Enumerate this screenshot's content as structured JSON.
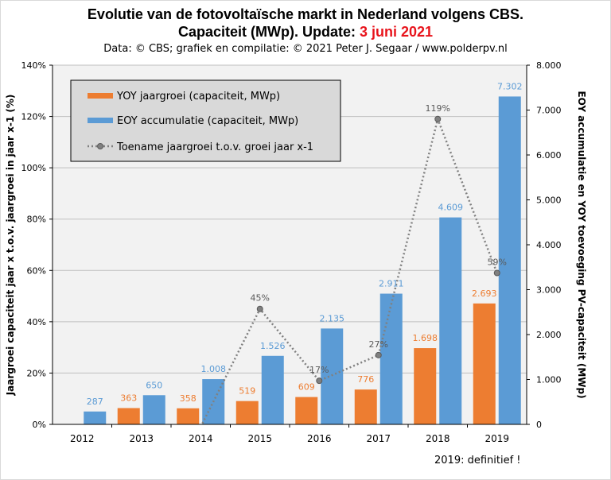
{
  "header": {
    "title_line1": "Evolutie van de fotovoltaïsche markt in Nederland volgens CBS.",
    "title_line2_prefix": "Capaciteit (MWp). Update: ",
    "title_line2_date": "3 juni 2021",
    "subtitle": "Data: © CBS; grafiek en compilatie: © 2021 Peter J. Segaar / www.polderpv.nl"
  },
  "footnote": "2019: definitief !",
  "colors": {
    "yoy": "#ed7d31",
    "eoy": "#5b9bd5",
    "growth": "#808080",
    "plot_bg": "#f2f2f2",
    "grid": "#bfbfbf"
  },
  "chart_data": {
    "type": "bar",
    "categories": [
      "2012",
      "2013",
      "2014",
      "2015",
      "2016",
      "2017",
      "2018",
      "2019"
    ],
    "series": [
      {
        "name": "YOY jaargroei (capaciteit, MWp)",
        "type": "bar",
        "axis": "right",
        "values": [
          null,
          363,
          358,
          519,
          609,
          776,
          1698,
          2693
        ],
        "labels": [
          "",
          "363",
          "358",
          "519",
          "609",
          "776",
          "1.698",
          "2.693"
        ]
      },
      {
        "name": "EOY accumulatie (capaciteit, MWp)",
        "type": "bar",
        "axis": "right",
        "values": [
          287,
          650,
          1008,
          1526,
          2135,
          2911,
          4609,
          7302
        ],
        "labels": [
          "287",
          "650",
          "1.008",
          "1.526",
          "2.135",
          "2.911",
          "4.609",
          "7.302"
        ]
      },
      {
        "name": "Toename jaargroei t.o.v. groei jaar x-1",
        "type": "line",
        "axis": "left",
        "values": [
          null,
          null,
          -1,
          45,
          17,
          27,
          119,
          59
        ],
        "labels": [
          "",
          "",
          "",
          "45%",
          "17%",
          "27%",
          "119%",
          "59%"
        ]
      }
    ],
    "left_axis": {
      "label": "Jaargroei capaciteit jaar x t.o.v. jaargroei in jaar x-1 (%)",
      "range": [
        0,
        140
      ],
      "ticks": [
        "0%",
        "20%",
        "40%",
        "60%",
        "80%",
        "100%",
        "120%",
        "140%"
      ]
    },
    "right_axis": {
      "label": "EOY accumulatie en YOY toevoeging PV-capaciteit (MWp)",
      "range": [
        0,
        8000
      ],
      "ticks": [
        "0",
        "1.000",
        "2.000",
        "3.000",
        "4.000",
        "5.000",
        "6.000",
        "7.000",
        "8.000"
      ]
    },
    "grid": true,
    "legend_position": "top-left"
  }
}
